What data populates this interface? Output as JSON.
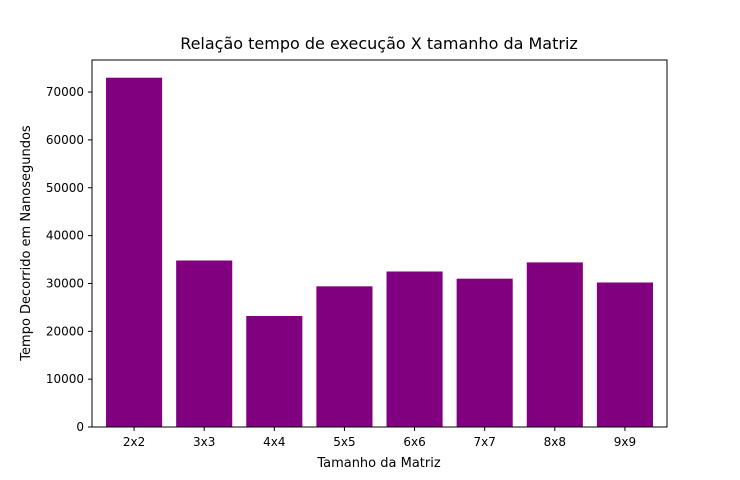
{
  "chart_data": {
    "type": "bar",
    "title": "Relação tempo de execução X tamanho da Matriz",
    "xlabel": "Tamanho da Matriz",
    "ylabel": "Tempo Decorrido em Nanosegundos",
    "categories": [
      "2x2",
      "3x3",
      "4x4",
      "5x5",
      "6x6",
      "7x7",
      "8x8",
      "9x9"
    ],
    "values": [
      73000,
      34800,
      23200,
      29400,
      32500,
      31000,
      34400,
      30200
    ],
    "ylim": [
      0,
      76700
    ],
    "yticks": [
      0,
      10000,
      20000,
      30000,
      40000,
      50000,
      60000,
      70000
    ],
    "bar_color": "#800080",
    "grid": false,
    "legend": "none"
  }
}
